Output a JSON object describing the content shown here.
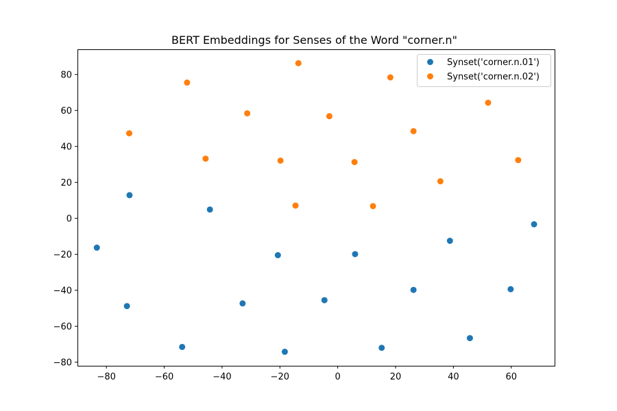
{
  "chart_data": {
    "type": "scatter",
    "title": "BERT Embeddings for Senses of the Word \"corner.n\"",
    "xlabel": "",
    "ylabel": "",
    "xlim": [
      -90,
      75
    ],
    "ylim": [
      -82,
      94
    ],
    "xticks": [
      -80,
      -60,
      -40,
      -20,
      0,
      20,
      40,
      60
    ],
    "yticks": [
      -80,
      -60,
      -40,
      -20,
      0,
      20,
      40,
      60,
      80
    ],
    "grid": false,
    "legend_position": "top-right",
    "series": [
      {
        "name": "Synset('corner.n.01')",
        "color": "#1f77b4",
        "points": [
          {
            "x": -72,
            "y": 12.9
          },
          {
            "x": -44.2,
            "y": 4.9
          },
          {
            "x": -83.3,
            "y": -16.3
          },
          {
            "x": -20.7,
            "y": -20.5
          },
          {
            "x": 6,
            "y": -19.9
          },
          {
            "x": 38.8,
            "y": -12.5
          },
          {
            "x": 67.9,
            "y": -3.3
          },
          {
            "x": -72.9,
            "y": -48.8
          },
          {
            "x": -32.9,
            "y": -47.3
          },
          {
            "x": -4.6,
            "y": -45.5
          },
          {
            "x": 26.2,
            "y": -39.8
          },
          {
            "x": 59.8,
            "y": -39.4
          },
          {
            "x": -53.8,
            "y": -71.5
          },
          {
            "x": -18.3,
            "y": -74.2
          },
          {
            "x": 15.2,
            "y": -72
          },
          {
            "x": 45.7,
            "y": -66.6
          }
        ]
      },
      {
        "name": "Synset('corner.n.02')",
        "color": "#ff7f0e",
        "points": [
          {
            "x": -72.1,
            "y": 47.3
          },
          {
            "x": -52.1,
            "y": 75.5
          },
          {
            "x": -45.7,
            "y": 33.2
          },
          {
            "x": -31.3,
            "y": 58.4
          },
          {
            "x": -19.8,
            "y": 32.1
          },
          {
            "x": -13.6,
            "y": 86.3
          },
          {
            "x": -14.6,
            "y": 7.1
          },
          {
            "x": -2.9,
            "y": 56.8
          },
          {
            "x": 5.8,
            "y": 31.3
          },
          {
            "x": 12.2,
            "y": 6.8
          },
          {
            "x": 18.2,
            "y": 78.4
          },
          {
            "x": 26.2,
            "y": 48.5
          },
          {
            "x": 35.5,
            "y": 20.6
          },
          {
            "x": 52,
            "y": 64.3
          },
          {
            "x": 62.4,
            "y": 32.4
          }
        ]
      }
    ]
  }
}
